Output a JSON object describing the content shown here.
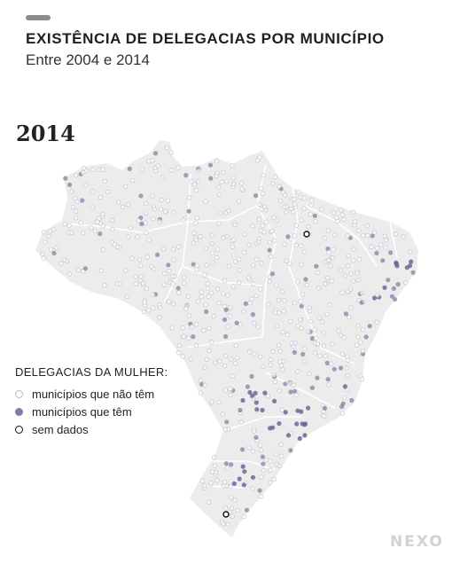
{
  "header": {
    "title": "EXISTÊNCIA DE DELEGACIAS POR MUNICÍPIO",
    "subtitle": "Entre 2004 e 2014"
  },
  "map": {
    "year": "2014",
    "colors": {
      "land": "#ececec",
      "borders": "#ffffff",
      "no_station": "#c4c4cc",
      "has_station": "#6f6696",
      "no_data": "#111111"
    }
  },
  "legend": {
    "title": "DELEGACIAS DA MULHER:",
    "items": [
      {
        "label": "municípios que não têm",
        "key": "no_station"
      },
      {
        "label": "municípios que têm",
        "key": "has_station"
      },
      {
        "label": "sem dados",
        "key": "no_data"
      }
    ]
  },
  "brand": {
    "logo_text": "NEXO"
  }
}
